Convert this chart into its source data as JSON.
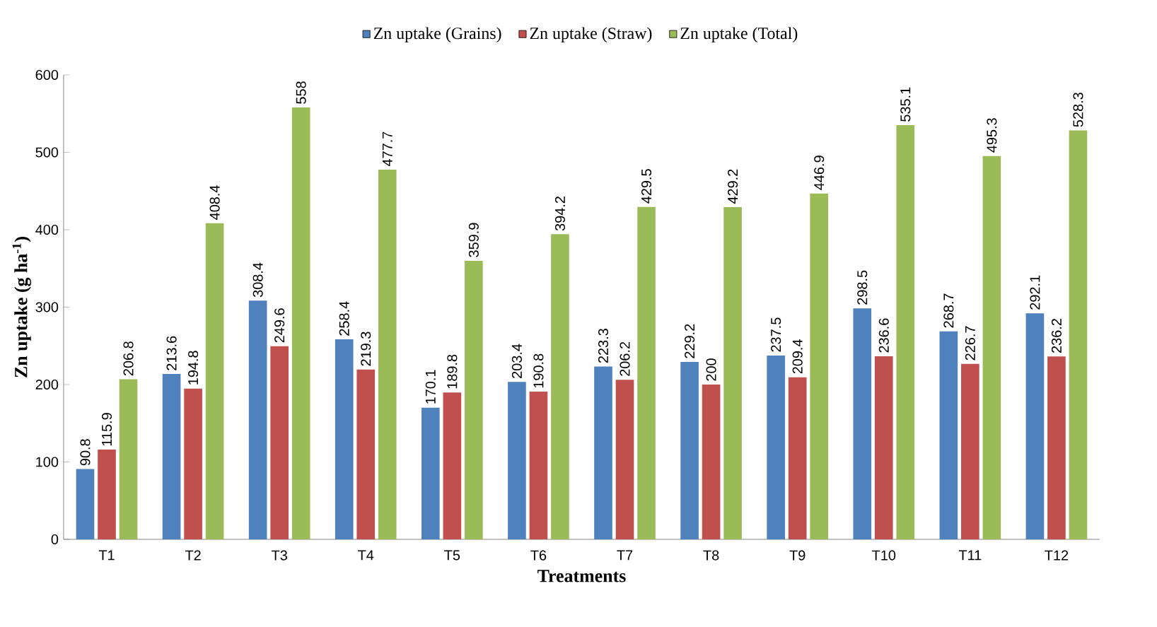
{
  "chart_data": {
    "type": "bar",
    "xlabel": "Treatments",
    "ylabel": "Zn uptake (g ha$^{-1}$)",
    "categories": [
      "T1",
      "T2",
      "T3",
      "T4",
      "T5",
      "T6",
      "T7",
      "T8",
      "T9",
      "T10",
      "T11",
      "T12"
    ],
    "series": [
      {
        "name": "Zn uptake (Grains)",
        "color": "#4f81bd",
        "values": [
          90.8,
          213.6,
          308.4,
          258.4,
          170.1,
          203.4,
          223.3,
          229.2,
          237.5,
          298.5,
          268.7,
          292.1
        ]
      },
      {
        "name": "Zn uptake (Straw)",
        "color": "#c0504d",
        "values": [
          115.9,
          194.8,
          249.6,
          219.3,
          189.8,
          190.8,
          206.2,
          200,
          209.4,
          236.6,
          226.7,
          236.2
        ]
      },
      {
        "name": "Zn uptake (Total)",
        "color": "#9bbb59",
        "values": [
          206.8,
          408.4,
          558,
          477.7,
          359.9,
          394.2,
          429.5,
          429.2,
          446.9,
          535.1,
          495.3,
          528.3
        ]
      }
    ],
    "ylim": [
      0,
      600
    ],
    "yticks": [
      0,
      100,
      200,
      300,
      400,
      500,
      600
    ],
    "data_labels": true,
    "legend": "top",
    "grid": false
  }
}
